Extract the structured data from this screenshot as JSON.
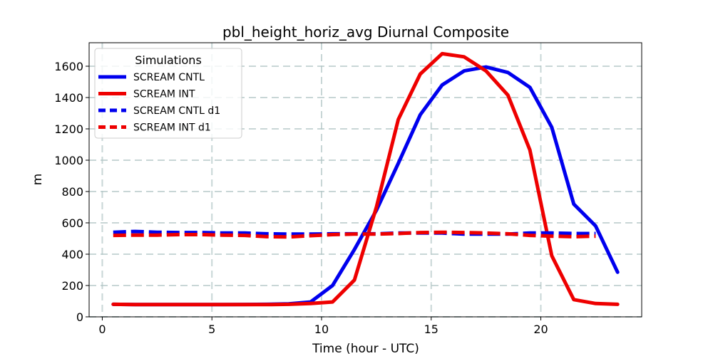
{
  "chart_data": {
    "type": "line",
    "title": "pbl_height_horiz_avg Diurnal Composite",
    "xlabel": "Time (hour - UTC)",
    "ylabel": "m",
    "xlim": [
      -0.6,
      24.6
    ],
    "ylim": [
      0,
      1750
    ],
    "xticks": [
      0,
      5,
      10,
      15,
      20
    ],
    "yticks": [
      0,
      200,
      400,
      600,
      800,
      1000,
      1200,
      1400,
      1600
    ],
    "grid": true,
    "legend": {
      "title": "Simulations",
      "position": "top-left"
    },
    "x": [
      0.5,
      1.5,
      2.5,
      3.5,
      4.5,
      5.5,
      6.5,
      7.5,
      8.5,
      9.5,
      10.5,
      11.5,
      12.5,
      13.5,
      14.5,
      15.5,
      16.5,
      17.5,
      18.5,
      19.5,
      20.5,
      21.5,
      22.5,
      23.5
    ],
    "series": [
      {
        "name": "SCREAM CNTL",
        "color": "#0000ee",
        "style": "solid",
        "values": [
          80,
          78,
          78,
          78,
          78,
          78,
          79,
          80,
          83,
          95,
          200,
          430,
          680,
          980,
          1290,
          1480,
          1570,
          1595,
          1560,
          1465,
          1210,
          720,
          580,
          285
        ]
      },
      {
        "name": "SCREAM INT",
        "color": "#ee0000",
        "style": "solid",
        "values": [
          80,
          78,
          78,
          78,
          78,
          78,
          78,
          78,
          80,
          85,
          95,
          235,
          700,
          1260,
          1550,
          1680,
          1660,
          1570,
          1415,
          1065,
          390,
          110,
          85,
          80
        ]
      },
      {
        "name": "SCREAM CNTL d1",
        "color": "#0000ee",
        "style": "dashed",
        "values": [
          540,
          545,
          540,
          538,
          538,
          535,
          535,
          530,
          528,
          528,
          530,
          530,
          530,
          535,
          535,
          535,
          528,
          528,
          528,
          535,
          535,
          532,
          532,
          null
        ]
      },
      {
        "name": "SCREAM INT d1",
        "color": "#ee0000",
        "style": "dashed",
        "values": [
          520,
          522,
          522,
          525,
          525,
          522,
          520,
          512,
          510,
          518,
          525,
          528,
          528,
          532,
          538,
          540,
          538,
          535,
          530,
          520,
          515,
          512,
          515,
          null
        ]
      }
    ]
  }
}
